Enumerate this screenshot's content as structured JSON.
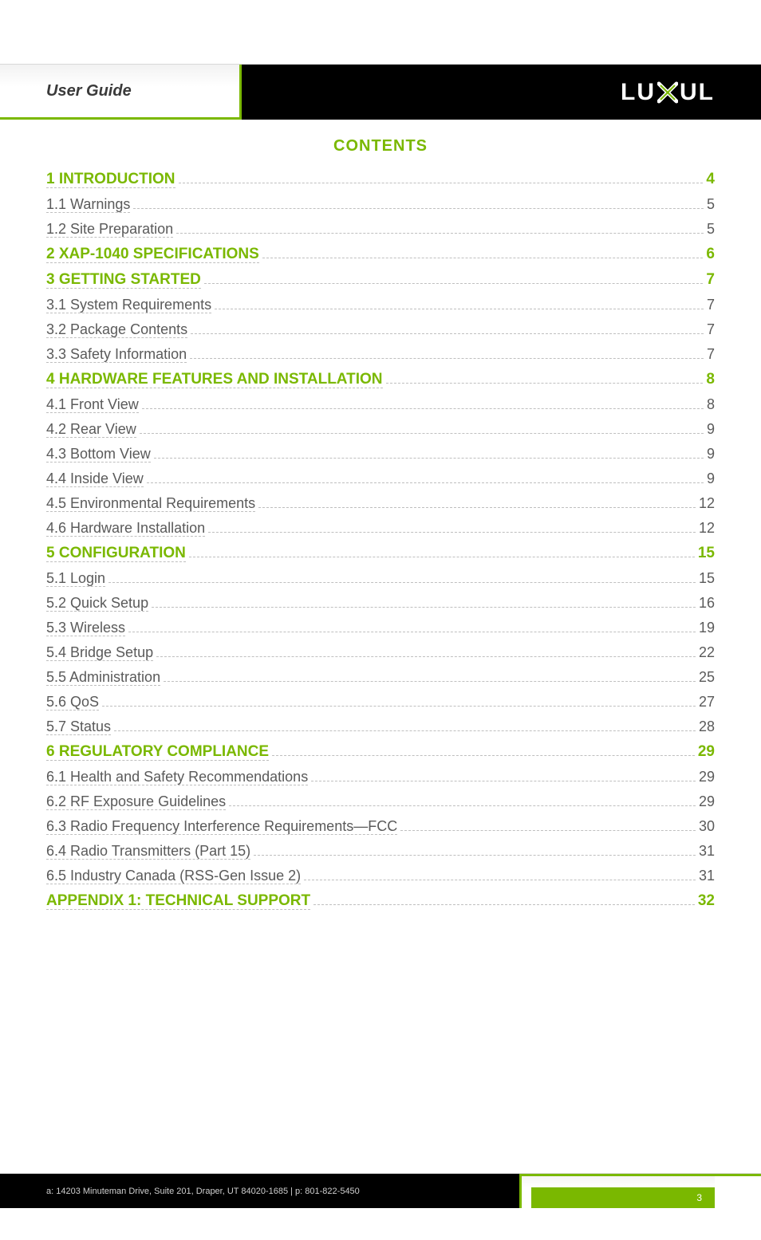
{
  "header": {
    "user_guide": "User Guide",
    "logo_left": "LU",
    "logo_right": "UL"
  },
  "title": "CONTENTS",
  "toc": [
    {
      "level": 1,
      "label": "1 INTRODUCTION",
      "page": "4"
    },
    {
      "level": 2,
      "label": "1.1 Warnings",
      "page": "5"
    },
    {
      "level": 2,
      "label": "1.2 Site Preparation",
      "page": "5"
    },
    {
      "level": 1,
      "label": "2 XAP-1040 SPECIFICATIONS",
      "page": "6"
    },
    {
      "level": 1,
      "label": "3 GETTING STARTED",
      "page": "7"
    },
    {
      "level": 2,
      "label": "3.1 System Requirements",
      "page": "7"
    },
    {
      "level": 2,
      "label": "3.2 Package Contents",
      "page": "7"
    },
    {
      "level": 2,
      "label": "3.3 Safety Information",
      "page": "7"
    },
    {
      "level": 1,
      "label": "4 HARDWARE FEATURES AND INSTALLATION",
      "page": "8"
    },
    {
      "level": 2,
      "label": "4.1 Front View",
      "page": "8"
    },
    {
      "level": 2,
      "label": "4.2 Rear View",
      "page": "9"
    },
    {
      "level": 2,
      "label": "4.3 Bottom View",
      "page": "9"
    },
    {
      "level": 2,
      "label": "4.4 Inside View",
      "page": "9"
    },
    {
      "level": 2,
      "label": "4.5 Environmental Requirements",
      "page": "12"
    },
    {
      "level": 2,
      "label": "4.6 Hardware Installation",
      "page": "12"
    },
    {
      "level": 1,
      "label": "5 CONFIGURATION",
      "page": "15"
    },
    {
      "level": 2,
      "label": "5.1 Login",
      "page": "15"
    },
    {
      "level": 2,
      "label": "5.2 Quick Setup",
      "page": "16"
    },
    {
      "level": 2,
      "label": "5.3 Wireless",
      "page": "19"
    },
    {
      "level": 2,
      "label": "5.4 Bridge Setup",
      "page": "22"
    },
    {
      "level": 2,
      "label": "5.5 Administration",
      "page": "25"
    },
    {
      "level": 2,
      "label": "5.6 QoS",
      "page": "27"
    },
    {
      "level": 2,
      "label": "5.7 Status",
      "page": "28"
    },
    {
      "level": 1,
      "label": "6 REGULATORY COMPLIANCE",
      "page": "29"
    },
    {
      "level": 2,
      "label": "6.1 Health and Safety Recommendations",
      "page": "29"
    },
    {
      "level": 2,
      "label": "6.2 RF Exposure Guidelines",
      "page": "29"
    },
    {
      "level": 2,
      "label": "6.3 Radio Frequency Interference Requirements—FCC",
      "page": "30"
    },
    {
      "level": 2,
      "label": "6.4 Radio Transmitters (Part 15)",
      "page": "31"
    },
    {
      "level": 2,
      "label": "6.5 Industry Canada (RSS-Gen Issue 2)",
      "page": "31"
    },
    {
      "level": 1,
      "label": "APPENDIX 1: TECHNICAL SUPPORT",
      "page": "32"
    }
  ],
  "footer": {
    "address": "a: 14203 Minuteman Drive, Suite 201, Draper, UT 84020-1685 | p: 801-822-5450",
    "page_number": "3"
  },
  "colors": {
    "accent": "#7ab800",
    "text": "#5a5a5a",
    "dark": "#000000",
    "leader": "#bfbfbf",
    "bg": "#ffffff"
  }
}
